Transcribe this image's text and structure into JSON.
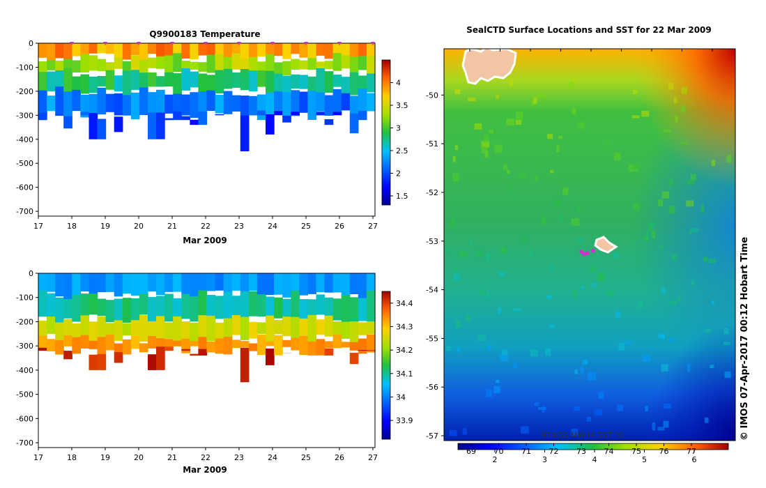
{
  "chart_data": [
    {
      "type": "heatmap",
      "title": "Q9900183  Temperature",
      "xlabel": "Mar 2009",
      "ylabel": "",
      "xlim": [
        17,
        27
      ],
      "ylim": [
        -720,
        0
      ],
      "x_ticks": [
        "17",
        "18",
        "19",
        "20",
        "21",
        "22",
        "23",
        "24",
        "25",
        "26",
        "27"
      ],
      "y_ticks": [
        "0",
        "-100",
        "-200",
        "-300",
        "-400",
        "-500",
        "-600",
        "-700"
      ],
      "colorbar": {
        "ticks": [
          "1.5",
          "2",
          "2.5",
          "3",
          "3.5",
          "4"
        ],
        "range": [
          1.3,
          4.5
        ]
      },
      "profile_markers_days": [
        18,
        19,
        20,
        21,
        22,
        23,
        24,
        25,
        26,
        27
      ],
      "layer_values": [
        3.9,
        3.3,
        2.8,
        2.2,
        1.9
      ],
      "layer_depths": [
        0,
        -60,
        -120,
        -200,
        -300
      ],
      "profiles": [
        {
          "x": 17.0,
          "max_depth": -320
        },
        {
          "x": 17.25,
          "max_depth": -300
        },
        {
          "x": 17.5,
          "max_depth": -300
        },
        {
          "x": 17.75,
          "max_depth": -355
        },
        {
          "x": 18.0,
          "max_depth": -300
        },
        {
          "x": 18.25,
          "max_depth": -300
        },
        {
          "x": 18.5,
          "max_depth": -400
        },
        {
          "x": 18.75,
          "max_depth": -400
        },
        {
          "x": 19.0,
          "max_depth": -300
        },
        {
          "x": 19.25,
          "max_depth": -370
        },
        {
          "x": 19.5,
          "max_depth": -300
        },
        {
          "x": 19.75,
          "max_depth": -300
        },
        {
          "x": 20.0,
          "max_depth": -300
        },
        {
          "x": 20.25,
          "max_depth": -400
        },
        {
          "x": 20.5,
          "max_depth": -400
        },
        {
          "x": 20.75,
          "max_depth": -320
        },
        {
          "x": 21.0,
          "max_depth": -320
        },
        {
          "x": 21.25,
          "max_depth": -320
        },
        {
          "x": 21.5,
          "max_depth": -340
        },
        {
          "x": 21.75,
          "max_depth": -340
        },
        {
          "x": 22.0,
          "max_depth": -300
        },
        {
          "x": 22.25,
          "max_depth": -300
        },
        {
          "x": 22.5,
          "max_depth": -300
        },
        {
          "x": 22.75,
          "max_depth": -300
        },
        {
          "x": 23.0,
          "max_depth": -450
        },
        {
          "x": 23.25,
          "max_depth": -300
        },
        {
          "x": 23.5,
          "max_depth": -300
        },
        {
          "x": 23.75,
          "max_depth": -380
        },
        {
          "x": 24.0,
          "max_depth": -300
        },
        {
          "x": 24.25,
          "max_depth": -330
        },
        {
          "x": 24.5,
          "max_depth": -300
        },
        {
          "x": 24.75,
          "max_depth": -300
        },
        {
          "x": 25.0,
          "max_depth": -300
        },
        {
          "x": 25.25,
          "max_depth": -300
        },
        {
          "x": 25.5,
          "max_depth": -340
        },
        {
          "x": 25.75,
          "max_depth": -300
        },
        {
          "x": 26.0,
          "max_depth": -300
        },
        {
          "x": 26.25,
          "max_depth": -375
        },
        {
          "x": 26.5,
          "max_depth": -320
        },
        {
          "x": 26.75,
          "max_depth": -320
        }
      ]
    },
    {
      "type": "heatmap",
      "title": "",
      "xlabel": "Mar 2009",
      "ylabel": "",
      "xlim": [
        17,
        27
      ],
      "ylim": [
        -720,
        0
      ],
      "x_ticks": [
        "17",
        "18",
        "19",
        "20",
        "21",
        "22",
        "23",
        "24",
        "25",
        "26",
        "27"
      ],
      "y_ticks": [
        "0",
        "-100",
        "-200",
        "-300",
        "-400",
        "-500",
        "-600",
        "-700"
      ],
      "colorbar": {
        "ticks": [
          "33.9",
          "34",
          "34.1",
          "34.2",
          "34.3",
          "34.4"
        ],
        "range": [
          33.82,
          34.45
        ]
      },
      "layer_values": [
        34.02,
        34.1,
        34.25,
        34.33,
        34.42
      ],
      "layer_depths": [
        0,
        -90,
        -190,
        -270,
        -320
      ]
    },
    {
      "type": "heatmap",
      "title": "SealCTD Surface Locations and SST for 22 Mar 2009",
      "xlabel": "",
      "ylabel": "",
      "ylim": [
        -57.1,
        -49.05
      ],
      "y_ticks": [
        "-50",
        "-51",
        "-52",
        "-53",
        "-54",
        "-55",
        "-56",
        "-57"
      ],
      "colorbar": {
        "label": "REMSS MW-IR SST °C",
        "ticks_c": [
          "2",
          "3",
          "4",
          "5",
          "6"
        ],
        "ticks_f": [
          "69",
          "70",
          "71",
          "72",
          "73",
          "74",
          "75",
          "76",
          "77"
        ]
      },
      "track_points": [
        [
          -53.22,
          0.4
        ],
        [
          -53.25,
          0.42
        ],
        [
          -53.2,
          0.44
        ],
        [
          -53.27,
          0.41
        ]
      ]
    }
  ],
  "side_label": "© IMOS 07-Apr-2017 00:12 Hobart Time",
  "colors": {
    "marker": "#cc33cc",
    "land": "#f2c6a4"
  }
}
